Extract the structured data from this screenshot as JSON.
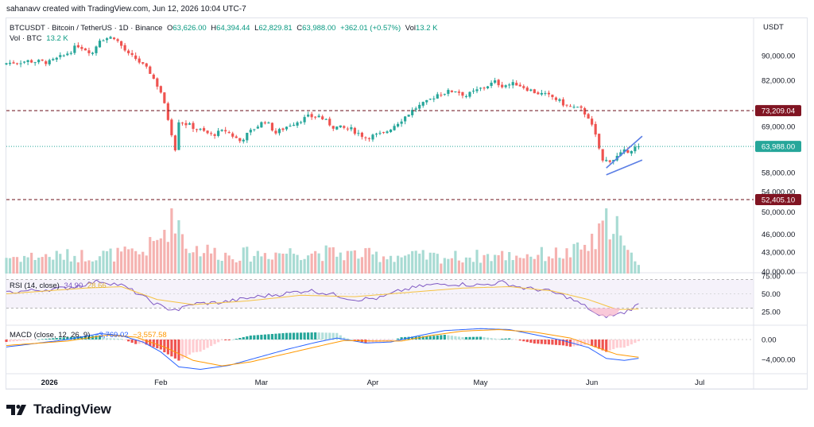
{
  "credit": "sahanavv created with TradingView.com, Jun 12, 2026 10:04 UTC-7",
  "legend": {
    "symbol": "BTCUSDT · Bitcoin / TetherUS · 1D · Binance",
    "o_label": "O",
    "o": "63,626.00",
    "h_label": "H",
    "h": "64,394.44",
    "l_label": "L",
    "l": "62,829.81",
    "c_label": "C",
    "c": "63,988.00",
    "change": "+362.01 (+0.57%)",
    "vol_label": "Vol",
    "vol": "13.2 K",
    "vol2_label": "Vol · BTC",
    "vol2": "13.2 K"
  },
  "rsi_legend": {
    "label": "RSI (14, close)",
    "value": "34.90",
    "ma": "28.66"
  },
  "macd_legend": {
    "label": "MACD (close, 12, 26, 9)",
    "macd": "−3,769.02",
    "signal": "−3,557.58"
  },
  "brand": "TradingView",
  "colors": {
    "up": "#26a69a",
    "down": "#ef5350",
    "channel": "#5b7ee5",
    "rsi_line": "#7e57c2",
    "rsi_ma": "#f5c242",
    "macd_line": "#2962ff",
    "signal_line": "#ff9800",
    "level": "#880e1f"
  },
  "chart_data": [
    {
      "type": "candlestick",
      "currency_label": "USDT",
      "y_ticks": [
        90000,
        82000,
        73209.04,
        69000,
        63988,
        58000,
        54000,
        52405.1,
        50000,
        46000,
        43000,
        40000
      ],
      "y_tick_labels": [
        "90,000.00",
        "82,000.00",
        "73,209.04",
        "69,000.00",
        "63,988.00",
        "58,000.00",
        "54,000.00",
        "52,405.10",
        "50,000.00",
        "46,000.00",
        "43,000.00",
        "40,000.00"
      ],
      "x_tick_labels": [
        "2026",
        "Feb",
        "Mar",
        "Apr",
        "May",
        "Jun",
        "Jul"
      ],
      "x_tick_days": [
        0,
        31,
        59,
        90,
        120,
        151,
        181
      ],
      "x_range": [
        -12,
        196
      ],
      "y_scale": "log",
      "horizontal_levels": [
        {
          "value": 73209.04,
          "label": "73,209.04",
          "style": "dashed"
        },
        {
          "value": 52405.1,
          "label": "52,405.10",
          "style": "dashed"
        }
      ],
      "last_price": {
        "value": 63988,
        "label": "63,988.00"
      },
      "close_anchors": [
        [
          -12,
          87500
        ],
        [
          -6,
          88200
        ],
        [
          0,
          87800
        ],
        [
          4,
          90000
        ],
        [
          8,
          93500
        ],
        [
          12,
          91000
        ],
        [
          14,
          95800
        ],
        [
          18,
          96500
        ],
        [
          22,
          90200
        ],
        [
          24,
          89000
        ],
        [
          28,
          84500
        ],
        [
          31,
          78500
        ],
        [
          33,
          71000
        ],
        [
          35,
          63500
        ],
        [
          36,
          70500
        ],
        [
          40,
          68800
        ],
        [
          45,
          66800
        ],
        [
          49,
          67900
        ],
        [
          53,
          65300
        ],
        [
          57,
          68500
        ],
        [
          60,
          70500
        ],
        [
          63,
          67300
        ],
        [
          67,
          69500
        ],
        [
          72,
          71500
        ],
        [
          75,
          71700
        ],
        [
          79,
          68900
        ],
        [
          84,
          68200
        ],
        [
          88,
          66200
        ],
        [
          93,
          67100
        ],
        [
          98,
          70800
        ],
        [
          102,
          74000
        ],
        [
          105,
          75500
        ],
        [
          108,
          77900
        ],
        [
          113,
          79000
        ],
        [
          116,
          77400
        ],
        [
          120,
          79500
        ],
        [
          124,
          81500
        ],
        [
          126,
          80500
        ],
        [
          130,
          81000
        ],
        [
          135,
          78500
        ],
        [
          140,
          77000
        ],
        [
          144,
          74500
        ],
        [
          148,
          73500
        ],
        [
          150,
          71500
        ],
        [
          152,
          66500
        ],
        [
          154,
          60500
        ],
        [
          157,
          61000
        ],
        [
          160,
          62700
        ],
        [
          164,
          63988
        ]
      ],
      "volume_anchors": [
        [
          -12,
          0.18
        ],
        [
          10,
          0.2
        ],
        [
          25,
          0.22
        ],
        [
          30,
          0.34
        ],
        [
          35,
          0.7
        ],
        [
          38,
          0.3
        ],
        [
          50,
          0.2
        ],
        [
          70,
          0.24
        ],
        [
          90,
          0.2
        ],
        [
          110,
          0.18
        ],
        [
          130,
          0.2
        ],
        [
          145,
          0.22
        ],
        [
          152,
          0.34
        ],
        [
          157,
          0.68
        ],
        [
          160,
          0.24
        ],
        [
          164,
          0.14
        ]
      ],
      "channel": {
        "upper": [
          [
            155,
            59000
          ],
          [
            165,
            66500
          ]
        ],
        "lower": [
          [
            155,
            57500
          ],
          [
            165,
            60800
          ]
        ]
      }
    },
    {
      "type": "line",
      "name": "RSI (14, close)",
      "y_ticks": [
        75,
        50,
        25
      ],
      "y_tick_labels": [
        "75.00",
        "50.00",
        "25.00"
      ],
      "bands": [
        70,
        30
      ],
      "rsi_anchors": [
        [
          -12,
          52
        ],
        [
          5,
          58
        ],
        [
          14,
          68
        ],
        [
          20,
          62
        ],
        [
          24,
          52
        ],
        [
          28,
          40
        ],
        [
          32,
          30
        ],
        [
          36,
          28
        ],
        [
          40,
          36
        ],
        [
          48,
          38
        ],
        [
          58,
          46
        ],
        [
          65,
          50
        ],
        [
          72,
          55
        ],
        [
          78,
          50
        ],
        [
          85,
          42
        ],
        [
          92,
          44
        ],
        [
          98,
          55
        ],
        [
          105,
          62
        ],
        [
          112,
          64
        ],
        [
          120,
          62
        ],
        [
          126,
          66
        ],
        [
          132,
          58
        ],
        [
          138,
          55
        ],
        [
          144,
          46
        ],
        [
          150,
          30
        ],
        [
          153,
          18
        ],
        [
          157,
          20
        ],
        [
          160,
          24
        ],
        [
          164,
          34.9
        ]
      ],
      "ma_anchors": [
        [
          -12,
          50
        ],
        [
          10,
          58
        ],
        [
          20,
          60
        ],
        [
          30,
          42
        ],
        [
          40,
          35
        ],
        [
          55,
          40
        ],
        [
          70,
          48
        ],
        [
          85,
          46
        ],
        [
          100,
          52
        ],
        [
          115,
          58
        ],
        [
          128,
          60
        ],
        [
          140,
          54
        ],
        [
          150,
          42
        ],
        [
          158,
          28
        ],
        [
          164,
          28.66
        ]
      ]
    },
    {
      "type": "line",
      "name": "MACD (close, 12, 26, 9)",
      "y_ticks": [
        0,
        -4000
      ],
      "y_tick_labels": [
        "0.00",
        "−4,000.00"
      ],
      "macd_anchors": [
        [
          -12,
          -1500
        ],
        [
          5,
          0
        ],
        [
          14,
          1200
        ],
        [
          20,
          800
        ],
        [
          26,
          -500
        ],
        [
          31,
          -2500
        ],
        [
          36,
          -5500
        ],
        [
          42,
          -6000
        ],
        [
          50,
          -5200
        ],
        [
          58,
          -3600
        ],
        [
          66,
          -2000
        ],
        [
          74,
          -600
        ],
        [
          80,
          300
        ],
        [
          88,
          -700
        ],
        [
          95,
          -500
        ],
        [
          103,
          800
        ],
        [
          110,
          1800
        ],
        [
          120,
          2200
        ],
        [
          128,
          2000
        ],
        [
          135,
          1000
        ],
        [
          143,
          -200
        ],
        [
          150,
          -1600
        ],
        [
          155,
          -3800
        ],
        [
          160,
          -4200
        ],
        [
          164,
          -3769.02
        ]
      ],
      "signal_anchors": [
        [
          -12,
          -1200
        ],
        [
          5,
          -300
        ],
        [
          16,
          900
        ],
        [
          24,
          500
        ],
        [
          32,
          -1500
        ],
        [
          40,
          -4200
        ],
        [
          48,
          -5300
        ],
        [
          56,
          -4500
        ],
        [
          65,
          -3000
        ],
        [
          74,
          -1500
        ],
        [
          82,
          -200
        ],
        [
          90,
          -300
        ],
        [
          98,
          -300
        ],
        [
          106,
          800
        ],
        [
          115,
          1700
        ],
        [
          125,
          2000
        ],
        [
          135,
          1500
        ],
        [
          145,
          300
        ],
        [
          152,
          -1500
        ],
        [
          158,
          -3000
        ],
        [
          164,
          -3557.58
        ]
      ]
    }
  ]
}
